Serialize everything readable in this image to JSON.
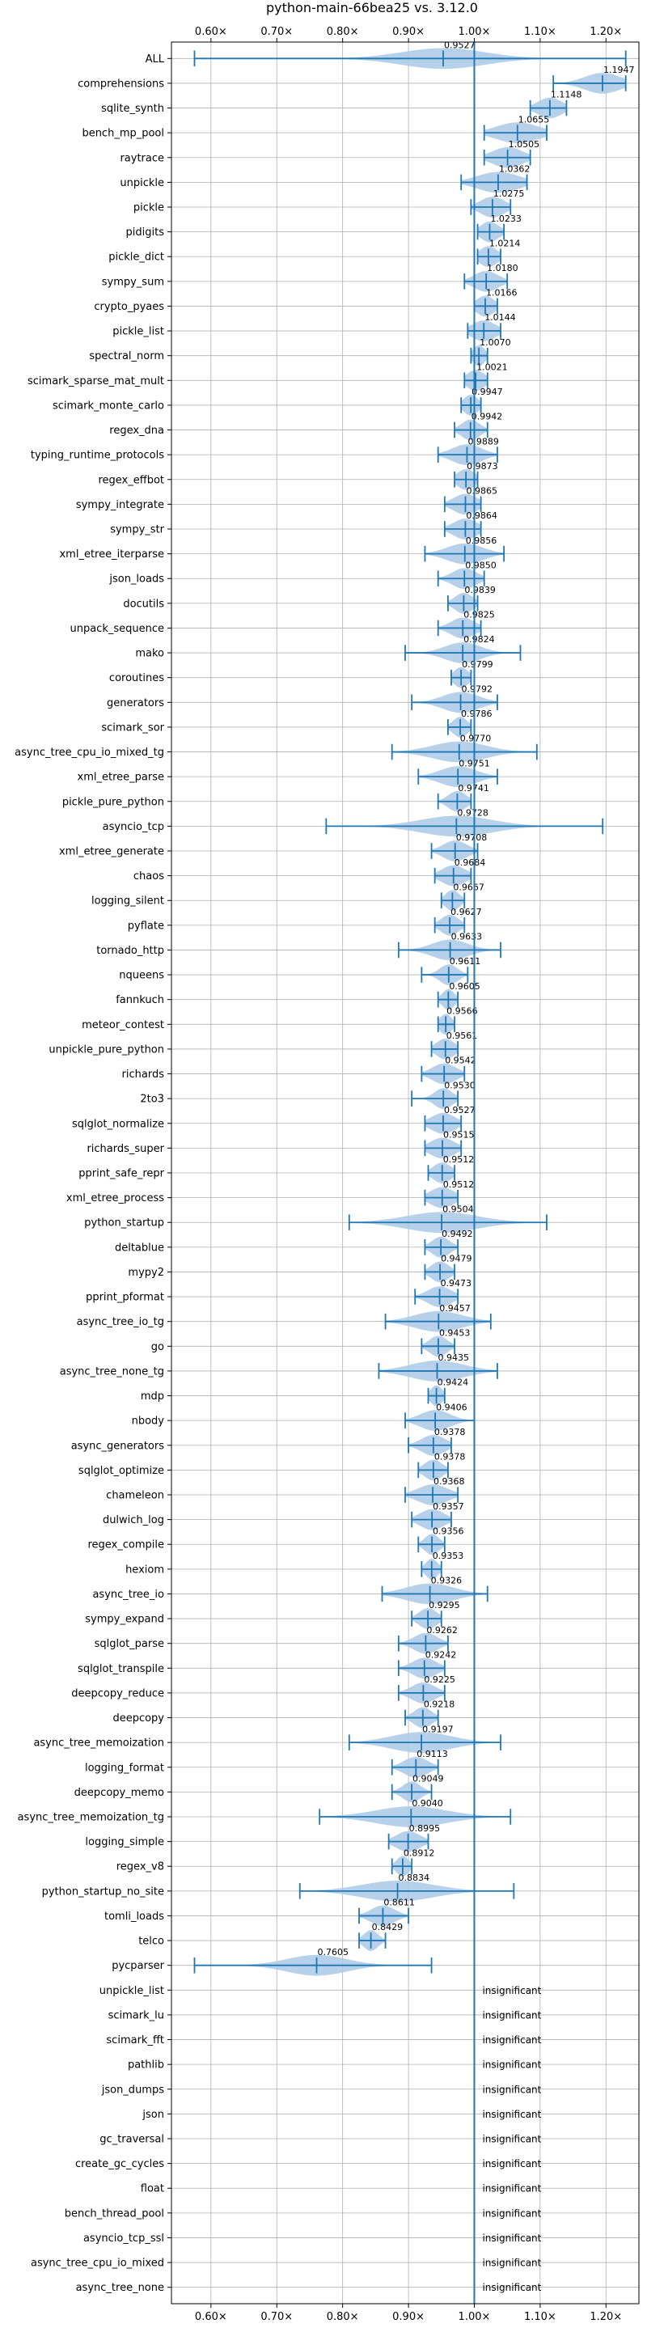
{
  "chart_data": {
    "type": "violin",
    "title": "python-main-66bea25 vs. 3.12.0",
    "xlabel": "",
    "ylabel": "",
    "xlim": [
      0.54,
      1.25
    ],
    "xticks": [
      0.6,
      0.7,
      0.8,
      0.9,
      1.0,
      1.1,
      1.2
    ],
    "xtick_labels": [
      "0.60×",
      "0.70×",
      "0.80×",
      "0.90×",
      "1.00×",
      "1.10×",
      "1.20×"
    ],
    "reference_line": 1.0,
    "grid": true,
    "accent_color": "#1f77b4",
    "violin_color": "#aac9e6",
    "benchmarks": [
      {
        "name": "ALL",
        "value": 0.9527,
        "label": "0.9527",
        "min": 0.575,
        "max": 1.23,
        "spread": 0.07
      },
      {
        "name": "comprehensions",
        "value": 1.1947,
        "label": "1.1947",
        "min": 1.12,
        "max": 1.23,
        "spread": 0.03
      },
      {
        "name": "sqlite_synth",
        "value": 1.1148,
        "label": "1.1148",
        "min": 1.085,
        "max": 1.14,
        "spread": 0.02
      },
      {
        "name": "bench_mp_pool",
        "value": 1.0655,
        "label": "1.0655",
        "min": 1.015,
        "max": 1.11,
        "spread": 0.035
      },
      {
        "name": "raytrace",
        "value": 1.0505,
        "label": "1.0505",
        "min": 1.015,
        "max": 1.085,
        "spread": 0.025
      },
      {
        "name": "unpickle",
        "value": 1.0362,
        "label": "1.0362",
        "min": 0.98,
        "max": 1.08,
        "spread": 0.035
      },
      {
        "name": "pickle",
        "value": 1.0275,
        "label": "1.0275",
        "min": 0.995,
        "max": 1.055,
        "spread": 0.02
      },
      {
        "name": "pidigits",
        "value": 1.0233,
        "label": "1.0233",
        "min": 1.005,
        "max": 1.045,
        "spread": 0.015
      },
      {
        "name": "pickle_dict",
        "value": 1.0214,
        "label": "1.0214",
        "min": 1.005,
        "max": 1.04,
        "spread": 0.015
      },
      {
        "name": "sympy_sum",
        "value": 1.018,
        "label": "1.0180",
        "min": 0.985,
        "max": 1.05,
        "spread": 0.02
      },
      {
        "name": "crypto_pyaes",
        "value": 1.0166,
        "label": "1.0166",
        "min": 1.0,
        "max": 1.035,
        "spread": 0.015
      },
      {
        "name": "pickle_list",
        "value": 1.0144,
        "label": "1.0144",
        "min": 0.99,
        "max": 1.04,
        "spread": 0.02
      },
      {
        "name": "spectral_norm",
        "value": 1.007,
        "label": "1.0070",
        "min": 0.995,
        "max": 1.02,
        "spread": 0.01
      },
      {
        "name": "scimark_sparse_mat_mult",
        "value": 1.0021,
        "label": "1.0021",
        "min": 0.985,
        "max": 1.02,
        "spread": 0.015
      },
      {
        "name": "scimark_monte_carlo",
        "value": 0.9947,
        "label": "0.9947",
        "min": 0.98,
        "max": 1.01,
        "spread": 0.012
      },
      {
        "name": "regex_dna",
        "value": 0.9942,
        "label": "0.9942",
        "min": 0.97,
        "max": 1.02,
        "spread": 0.015
      },
      {
        "name": "typing_runtime_protocols",
        "value": 0.9889,
        "label": "0.9889",
        "min": 0.945,
        "max": 1.035,
        "spread": 0.025
      },
      {
        "name": "regex_effbot",
        "value": 0.9873,
        "label": "0.9873",
        "min": 0.97,
        "max": 1.005,
        "spread": 0.015
      },
      {
        "name": "sympy_integrate",
        "value": 0.9865,
        "label": "0.9865",
        "min": 0.955,
        "max": 1.01,
        "spread": 0.02
      },
      {
        "name": "sympy_str",
        "value": 0.9864,
        "label": "0.9864",
        "min": 0.955,
        "max": 1.01,
        "spread": 0.02
      },
      {
        "name": "xml_etree_iterparse",
        "value": 0.9856,
        "label": "0.9856",
        "min": 0.925,
        "max": 1.045,
        "spread": 0.03
      },
      {
        "name": "json_loads",
        "value": 0.985,
        "label": "0.9850",
        "min": 0.945,
        "max": 1.015,
        "spread": 0.02
      },
      {
        "name": "docutils",
        "value": 0.9839,
        "label": "0.9839",
        "min": 0.96,
        "max": 1.005,
        "spread": 0.015
      },
      {
        "name": "unpack_sequence",
        "value": 0.9825,
        "label": "0.9825",
        "min": 0.945,
        "max": 1.01,
        "spread": 0.02
      },
      {
        "name": "mako",
        "value": 0.9824,
        "label": "0.9824",
        "min": 0.895,
        "max": 1.07,
        "spread": 0.03
      },
      {
        "name": "coroutines",
        "value": 0.9799,
        "label": "0.9799",
        "min": 0.965,
        "max": 0.995,
        "spread": 0.012
      },
      {
        "name": "generators",
        "value": 0.9792,
        "label": "0.9792",
        "min": 0.905,
        "max": 1.035,
        "spread": 0.03
      },
      {
        "name": "scimark_sor",
        "value": 0.9786,
        "label": "0.9786",
        "min": 0.96,
        "max": 0.995,
        "spread": 0.012
      },
      {
        "name": "async_tree_cpu_io_mixed_tg",
        "value": 0.977,
        "label": "0.9770",
        "min": 0.875,
        "max": 1.095,
        "spread": 0.045
      },
      {
        "name": "xml_etree_parse",
        "value": 0.9751,
        "label": "0.9751",
        "min": 0.915,
        "max": 1.035,
        "spread": 0.03
      },
      {
        "name": "pickle_pure_python",
        "value": 0.9741,
        "label": "0.9741",
        "min": 0.945,
        "max": 0.995,
        "spread": 0.015
      },
      {
        "name": "asyncio_tcp",
        "value": 0.9728,
        "label": "0.9728",
        "min": 0.775,
        "max": 1.195,
        "spread": 0.06
      },
      {
        "name": "xml_etree_generate",
        "value": 0.9708,
        "label": "0.9708",
        "min": 0.935,
        "max": 1.005,
        "spread": 0.02
      },
      {
        "name": "chaos",
        "value": 0.9684,
        "label": "0.9684",
        "min": 0.94,
        "max": 0.995,
        "spread": 0.02
      },
      {
        "name": "logging_silent",
        "value": 0.9667,
        "label": "0.9667",
        "min": 0.95,
        "max": 0.985,
        "spread": 0.012
      },
      {
        "name": "pyflate",
        "value": 0.9627,
        "label": "0.9627",
        "min": 0.94,
        "max": 0.985,
        "spread": 0.015
      },
      {
        "name": "tornado_http",
        "value": 0.9633,
        "label": "0.9633",
        "min": 0.885,
        "max": 1.04,
        "spread": 0.03
      },
      {
        "name": "nqueens",
        "value": 0.9611,
        "label": "0.9611",
        "min": 0.92,
        "max": 0.99,
        "spread": 0.015
      },
      {
        "name": "fannkuch",
        "value": 0.9605,
        "label": "0.9605",
        "min": 0.945,
        "max": 0.975,
        "spread": 0.01
      },
      {
        "name": "meteor_contest",
        "value": 0.9566,
        "label": "0.9566",
        "min": 0.945,
        "max": 0.97,
        "spread": 0.01
      },
      {
        "name": "unpickle_pure_python",
        "value": 0.9561,
        "label": "0.9561",
        "min": 0.935,
        "max": 0.975,
        "spread": 0.015
      },
      {
        "name": "richards",
        "value": 0.9542,
        "label": "0.9542",
        "min": 0.92,
        "max": 0.985,
        "spread": 0.02
      },
      {
        "name": "2to3",
        "value": 0.953,
        "label": "0.9530",
        "min": 0.905,
        "max": 0.975,
        "spread": 0.015
      },
      {
        "name": "sqlglot_normalize",
        "value": 0.9527,
        "label": "0.9527",
        "min": 0.925,
        "max": 0.98,
        "spread": 0.02
      },
      {
        "name": "richards_super",
        "value": 0.9515,
        "label": "0.9515",
        "min": 0.925,
        "max": 0.98,
        "spread": 0.02
      },
      {
        "name": "pprint_safe_repr",
        "value": 0.9512,
        "label": "0.9512",
        "min": 0.93,
        "max": 0.97,
        "spread": 0.015
      },
      {
        "name": "xml_etree_process",
        "value": 0.9512,
        "label": "0.9512",
        "min": 0.925,
        "max": 0.975,
        "spread": 0.02
      },
      {
        "name": "python_startup",
        "value": 0.9504,
        "label": "0.9504",
        "min": 0.81,
        "max": 1.11,
        "spread": 0.06
      },
      {
        "name": "deltablue",
        "value": 0.9492,
        "label": "0.9492",
        "min": 0.925,
        "max": 0.975,
        "spread": 0.015
      },
      {
        "name": "mypy2",
        "value": 0.9479,
        "label": "0.9479",
        "min": 0.925,
        "max": 0.97,
        "spread": 0.015
      },
      {
        "name": "pprint_pformat",
        "value": 0.9473,
        "label": "0.9473",
        "min": 0.91,
        "max": 0.975,
        "spread": 0.02
      },
      {
        "name": "async_tree_io_tg",
        "value": 0.9457,
        "label": "0.9457",
        "min": 0.865,
        "max": 1.025,
        "spread": 0.04
      },
      {
        "name": "go",
        "value": 0.9453,
        "label": "0.9453",
        "min": 0.92,
        "max": 0.97,
        "spread": 0.015
      },
      {
        "name": "async_tree_none_tg",
        "value": 0.9435,
        "label": "0.9435",
        "min": 0.855,
        "max": 1.035,
        "spread": 0.045
      },
      {
        "name": "mdp",
        "value": 0.9424,
        "label": "0.9424",
        "min": 0.93,
        "max": 0.955,
        "spread": 0.01
      },
      {
        "name": "nbody",
        "value": 0.9406,
        "label": "0.9406",
        "min": 0.895,
        "max": 1.0,
        "spread": 0.025
      },
      {
        "name": "async_generators",
        "value": 0.9378,
        "label": "0.9378",
        "min": 0.9,
        "max": 0.965,
        "spread": 0.02
      },
      {
        "name": "sqlglot_optimize",
        "value": 0.9378,
        "label": "0.9378",
        "min": 0.915,
        "max": 0.96,
        "spread": 0.015
      },
      {
        "name": "chameleon",
        "value": 0.9368,
        "label": "0.9368",
        "min": 0.895,
        "max": 0.975,
        "spread": 0.025
      },
      {
        "name": "dulwich_log",
        "value": 0.9357,
        "label": "0.9357",
        "min": 0.905,
        "max": 0.965,
        "spread": 0.02
      },
      {
        "name": "regex_compile",
        "value": 0.9356,
        "label": "0.9356",
        "min": 0.915,
        "max": 0.955,
        "spread": 0.012
      },
      {
        "name": "hexiom",
        "value": 0.9353,
        "label": "0.9353",
        "min": 0.92,
        "max": 0.95,
        "spread": 0.01
      },
      {
        "name": "async_tree_io",
        "value": 0.9326,
        "label": "0.9326",
        "min": 0.86,
        "max": 1.02,
        "spread": 0.04
      },
      {
        "name": "sympy_expand",
        "value": 0.9295,
        "label": "0.9295",
        "min": 0.905,
        "max": 0.95,
        "spread": 0.015
      },
      {
        "name": "sqlglot_parse",
        "value": 0.9262,
        "label": "0.9262",
        "min": 0.885,
        "max": 0.96,
        "spread": 0.02
      },
      {
        "name": "sqlglot_transpile",
        "value": 0.9242,
        "label": "0.9242",
        "min": 0.885,
        "max": 0.955,
        "spread": 0.02
      },
      {
        "name": "deepcopy_reduce",
        "value": 0.9225,
        "label": "0.9225",
        "min": 0.885,
        "max": 0.955,
        "spread": 0.02
      },
      {
        "name": "deepcopy",
        "value": 0.9218,
        "label": "0.9218",
        "min": 0.895,
        "max": 0.945,
        "spread": 0.015
      },
      {
        "name": "async_tree_memoization",
        "value": 0.9197,
        "label": "0.9197",
        "min": 0.81,
        "max": 1.04,
        "spread": 0.05
      },
      {
        "name": "logging_format",
        "value": 0.9113,
        "label": "0.9113",
        "min": 0.875,
        "max": 0.945,
        "spread": 0.02
      },
      {
        "name": "deepcopy_memo",
        "value": 0.9049,
        "label": "0.9049",
        "min": 0.875,
        "max": 0.935,
        "spread": 0.015
      },
      {
        "name": "async_tree_memoization_tg",
        "value": 0.904,
        "label": "0.9040",
        "min": 0.765,
        "max": 1.055,
        "spread": 0.06
      },
      {
        "name": "logging_simple",
        "value": 0.8995,
        "label": "0.8995",
        "min": 0.87,
        "max": 0.93,
        "spread": 0.02
      },
      {
        "name": "regex_v8",
        "value": 0.8912,
        "label": "0.8912",
        "min": 0.875,
        "max": 0.905,
        "spread": 0.01
      },
      {
        "name": "python_startup_no_site",
        "value": 0.8834,
        "label": "0.8834",
        "min": 0.735,
        "max": 1.06,
        "spread": 0.06
      },
      {
        "name": "tomli_loads",
        "value": 0.8611,
        "label": "0.8611",
        "min": 0.825,
        "max": 0.9,
        "spread": 0.02
      },
      {
        "name": "telco",
        "value": 0.8429,
        "label": "0.8429",
        "min": 0.825,
        "max": 0.865,
        "spread": 0.012
      },
      {
        "name": "pycparser",
        "value": 0.7605,
        "label": "0.7605",
        "min": 0.575,
        "max": 0.935,
        "spread": 0.05
      },
      {
        "name": "unpickle_list",
        "insignificant": true
      },
      {
        "name": "scimark_lu",
        "insignificant": true
      },
      {
        "name": "scimark_fft",
        "insignificant": true
      },
      {
        "name": "pathlib",
        "insignificant": true
      },
      {
        "name": "json_dumps",
        "insignificant": true
      },
      {
        "name": "json",
        "insignificant": true
      },
      {
        "name": "gc_traversal",
        "insignificant": true
      },
      {
        "name": "create_gc_cycles",
        "insignificant": true
      },
      {
        "name": "float",
        "insignificant": true
      },
      {
        "name": "bench_thread_pool",
        "insignificant": true
      },
      {
        "name": "asyncio_tcp_ssl",
        "insignificant": true
      },
      {
        "name": "async_tree_cpu_io_mixed",
        "insignificant": true
      },
      {
        "name": "async_tree_none",
        "insignificant": true
      }
    ],
    "insignificant_label": "insignificant"
  }
}
